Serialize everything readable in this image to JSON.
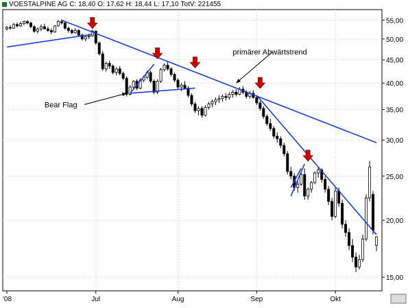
{
  "header": {
    "symbol": "VOESTALPINE AG",
    "close": "C: 18,40",
    "open": "O: 17,62",
    "high": "H: 18,44",
    "low": "L: 17,10",
    "volume": "TotV: 221455"
  },
  "colors": {
    "background": "#ffffff",
    "candle": "#000000",
    "trendline": "#1f3fd1",
    "arrow": "#cc0000",
    "grid": "#c8c8c8"
  },
  "chart_data": {
    "type": "candlestick",
    "scale": "log",
    "ylim": [
      14.0,
      58.0
    ],
    "y_ticks": [
      15,
      20,
      25,
      30,
      35,
      40,
      45,
      50,
      55
    ],
    "y_tick_labels": [
      "15,00",
      "20,00",
      "25,00",
      "30,00",
      "35,00",
      "40,00",
      "45,00",
      "50,00",
      "55,00"
    ],
    "x_tick_labels": [
      {
        "label": "'08",
        "bar": 0
      },
      {
        "label": "Jul",
        "bar": 26
      },
      {
        "label": "Aug",
        "bar": 50
      },
      {
        "label": "Sep",
        "bar": 73
      },
      {
        "label": "Okt",
        "bar": 96
      }
    ],
    "grid": true,
    "candles": [
      [
        52.6,
        53.4,
        52.2,
        53.0
      ],
      [
        53.0,
        53.6,
        52.4,
        52.8
      ],
      [
        52.8,
        54.2,
        52.6,
        53.8
      ],
      [
        53.8,
        54.4,
        53.0,
        53.4
      ],
      [
        53.4,
        54.6,
        53.2,
        54.0
      ],
      [
        54.0,
        54.8,
        53.6,
        54.6
      ],
      [
        54.6,
        55.0,
        53.8,
        54.2
      ],
      [
        54.2,
        54.6,
        52.8,
        53.2
      ],
      [
        53.2,
        53.6,
        51.6,
        52.0
      ],
      [
        52.0,
        53.0,
        51.4,
        52.6
      ],
      [
        52.6,
        53.8,
        52.0,
        53.2
      ],
      [
        53.2,
        54.0,
        52.6,
        52.6
      ],
      [
        52.6,
        53.2,
        51.8,
        52.2
      ],
      [
        52.2,
        52.8,
        51.2,
        51.8
      ],
      [
        51.8,
        53.6,
        51.6,
        53.4
      ],
      [
        53.4,
        55.0,
        53.2,
        54.6
      ],
      [
        54.6,
        55.2,
        53.8,
        54.2
      ],
      [
        54.2,
        54.6,
        52.4,
        52.8
      ],
      [
        52.8,
        53.2,
        51.6,
        52.2
      ],
      [
        52.2,
        52.6,
        51.2,
        51.6
      ],
      [
        51.6,
        52.8,
        51.4,
        52.2
      ],
      [
        52.2,
        52.6,
        50.8,
        51.0
      ],
      [
        51.0,
        51.4,
        49.6,
        50.0
      ],
      [
        50.0,
        50.8,
        49.4,
        50.6
      ],
      [
        50.6,
        51.4,
        50.0,
        50.8
      ],
      [
        50.8,
        52.4,
        50.6,
        52.0
      ],
      [
        52.0,
        52.2,
        48.6,
        49.0
      ],
      [
        49.0,
        49.4,
        46.0,
        46.4
      ],
      [
        46.4,
        47.0,
        42.6,
        43.0
      ],
      [
        43.0,
        44.6,
        42.4,
        44.2
      ],
      [
        44.2,
        44.8,
        43.0,
        43.6
      ],
      [
        43.6,
        44.0,
        41.8,
        42.2
      ],
      [
        42.2,
        43.4,
        41.6,
        43.0
      ],
      [
        43.0,
        43.6,
        41.6,
        42.0
      ],
      [
        42.0,
        42.4,
        40.6,
        41.0
      ],
      [
        41.0,
        41.4,
        37.4,
        37.8
      ],
      [
        37.8,
        39.6,
        37.6,
        39.2
      ],
      [
        39.2,
        40.6,
        38.8,
        40.4
      ],
      [
        40.4,
        40.8,
        38.6,
        39.0
      ],
      [
        39.0,
        41.0,
        38.8,
        40.6
      ],
      [
        40.6,
        41.6,
        40.2,
        41.2
      ],
      [
        41.2,
        42.6,
        40.8,
        42.2
      ],
      [
        42.2,
        42.6,
        40.0,
        40.4
      ],
      [
        40.4,
        40.8,
        37.8,
        38.2
      ],
      [
        38.2,
        40.8,
        37.8,
        40.4
      ],
      [
        40.4,
        43.2,
        40.0,
        42.8
      ],
      [
        42.8,
        44.2,
        42.4,
        43.8
      ],
      [
        43.8,
        44.6,
        42.6,
        43.0
      ],
      [
        43.0,
        43.4,
        41.4,
        41.8
      ],
      [
        41.8,
        42.2,
        40.2,
        40.6
      ],
      [
        40.6,
        41.0,
        38.8,
        39.2
      ],
      [
        39.2,
        40.0,
        38.4,
        39.6
      ],
      [
        39.6,
        40.4,
        38.8,
        39.0
      ],
      [
        39.0,
        39.4,
        37.2,
        37.6
      ],
      [
        37.6,
        38.0,
        35.6,
        36.0
      ],
      [
        36.0,
        36.4,
        34.4,
        34.8
      ],
      [
        34.8,
        35.6,
        34.0,
        35.2
      ],
      [
        35.2,
        35.6,
        33.6,
        34.0
      ],
      [
        34.0,
        35.8,
        33.8,
        35.4
      ],
      [
        35.4,
        36.4,
        35.0,
        36.0
      ],
      [
        36.0,
        36.8,
        35.4,
        36.4
      ],
      [
        36.4,
        37.2,
        35.8,
        36.8
      ],
      [
        36.8,
        37.6,
        36.2,
        37.0
      ],
      [
        37.0,
        37.8,
        36.4,
        37.4
      ],
      [
        37.4,
        38.0,
        36.6,
        37.2
      ],
      [
        37.2,
        38.2,
        36.8,
        37.8
      ],
      [
        37.8,
        38.6,
        37.2,
        38.2
      ],
      [
        38.2,
        38.8,
        37.4,
        37.8
      ],
      [
        37.8,
        39.2,
        37.6,
        38.8
      ],
      [
        38.8,
        39.4,
        37.8,
        38.2
      ],
      [
        38.2,
        38.6,
        37.0,
        37.4
      ],
      [
        37.4,
        38.4,
        37.0,
        38.0
      ],
      [
        38.0,
        38.6,
        37.0,
        37.2
      ],
      [
        37.2,
        37.6,
        35.8,
        36.2
      ],
      [
        36.2,
        36.6,
        34.8,
        35.2
      ],
      [
        35.2,
        35.6,
        33.4,
        33.8
      ],
      [
        33.8,
        34.2,
        32.2,
        32.6
      ],
      [
        32.6,
        33.4,
        31.4,
        31.8
      ],
      [
        31.8,
        32.2,
        30.2,
        30.6
      ],
      [
        30.6,
        31.2,
        29.6,
        30.2
      ],
      [
        30.2,
        30.6,
        28.8,
        29.2
      ],
      [
        29.2,
        29.6,
        27.6,
        28.0
      ],
      [
        28.0,
        28.4,
        25.2,
        25.6
      ],
      [
        25.6,
        26.2,
        24.6,
        25.0
      ],
      [
        25.0,
        25.4,
        23.2,
        23.6
      ],
      [
        23.6,
        24.4,
        23.0,
        24.0
      ],
      [
        24.0,
        25.6,
        23.8,
        25.2
      ],
      [
        25.2,
        26.0,
        22.2,
        22.6
      ],
      [
        22.6,
        23.6,
        22.2,
        23.4
      ],
      [
        23.4,
        24.4,
        23.0,
        24.2
      ],
      [
        24.2,
        25.6,
        24.0,
        25.4
      ],
      [
        25.4,
        26.2,
        24.8,
        25.8
      ],
      [
        25.8,
        26.0,
        24.2,
        24.6
      ],
      [
        24.6,
        25.0,
        23.0,
        23.4
      ],
      [
        23.4,
        23.8,
        21.6,
        22.0
      ],
      [
        22.0,
        22.4,
        20.0,
        20.4
      ],
      [
        20.4,
        23.6,
        20.2,
        23.2
      ],
      [
        23.2,
        23.6,
        21.4,
        21.8
      ],
      [
        21.8,
        22.2,
        19.2,
        19.6
      ],
      [
        19.6,
        20.0,
        18.4,
        18.8
      ],
      [
        18.8,
        19.2,
        17.2,
        17.6
      ],
      [
        17.6,
        18.2,
        16.2,
        16.6
      ],
      [
        16.6,
        17.0,
        15.4,
        15.8
      ],
      [
        15.8,
        16.8,
        15.6,
        16.4
      ],
      [
        16.4,
        18.6,
        16.2,
        18.2
      ],
      [
        18.2,
        22.8,
        18.0,
        22.4
      ],
      [
        22.4,
        27.0,
        22.0,
        26.2
      ],
      [
        22.8,
        23.2,
        18.6,
        19.0
      ],
      [
        17.62,
        18.44,
        17.1,
        18.4
      ]
    ],
    "trendlines": [
      {
        "from": [
          0,
          48.0
        ],
        "to": [
          25,
          51.2
        ]
      },
      {
        "from": [
          16,
          55.0
        ],
        "to": [
          108,
          29.6
        ]
      },
      {
        "from": [
          36,
          38.0
        ],
        "to": [
          43,
          44.0
        ]
      },
      {
        "from": [
          36,
          38.0
        ],
        "to": [
          55,
          39.0
        ]
      },
      {
        "from": [
          73,
          37.6
        ],
        "to": [
          108,
          18.6
        ]
      },
      {
        "from": [
          83,
          22.6
        ],
        "to": [
          87,
          26.6
        ]
      },
      {
        "from": [
          83,
          23.6
        ],
        "to": [
          86,
          26.0
        ]
      }
    ],
    "signal_arrows": [
      {
        "bar": 25,
        "price": 52.0
      },
      {
        "bar": 44,
        "price": 44.6
      },
      {
        "bar": 55,
        "price": 42.6
      },
      {
        "bar": 74,
        "price": 38.4
      },
      {
        "bar": 88,
        "price": 26.6
      }
    ],
    "annotations": [
      {
        "text": "Bear Flag",
        "anchor_bar": 11,
        "anchor_price": 35.4,
        "target_bar": 35,
        "target_price": 38.0
      },
      {
        "text": "primärer Abwärtstrend",
        "anchor_bar": 66,
        "anchor_price": 46.2,
        "target_bar": 67,
        "target_price": 40.0
      }
    ]
  }
}
